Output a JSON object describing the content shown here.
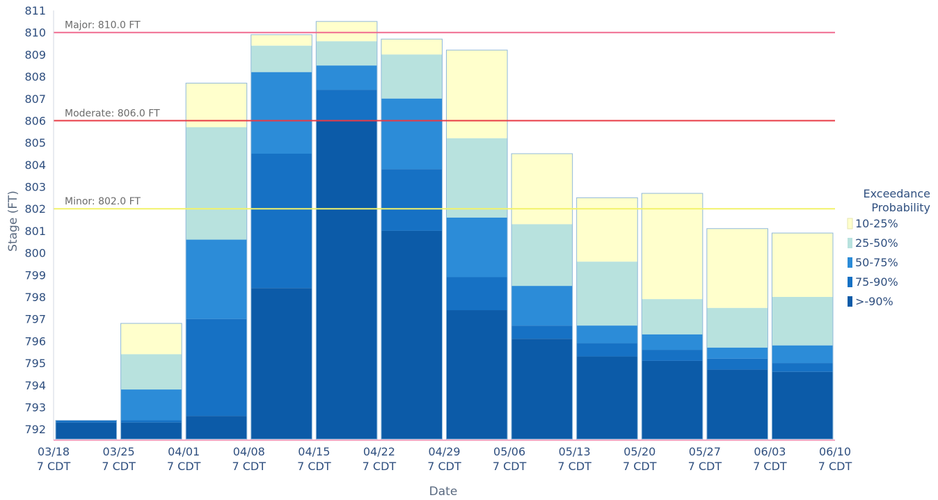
{
  "chart_data": {
    "type": "bar",
    "stacked": true,
    "xlabel": "Date",
    "ylabel": "Stage (FT)",
    "ylim": [
      791.5,
      811
    ],
    "yticks": [
      792,
      793,
      794,
      795,
      796,
      797,
      798,
      799,
      800,
      801,
      802,
      803,
      804,
      805,
      806,
      807,
      808,
      809,
      810,
      811
    ],
    "x_tick_labels": [
      {
        "date": "03/18",
        "time": "7 CDT"
      },
      {
        "date": "03/25",
        "time": "7 CDT"
      },
      {
        "date": "04/01",
        "time": "7 CDT"
      },
      {
        "date": "04/08",
        "time": "7 CDT"
      },
      {
        "date": "04/15",
        "time": "7 CDT"
      },
      {
        "date": "04/22",
        "time": "7 CDT"
      },
      {
        "date": "04/29",
        "time": "7 CDT"
      },
      {
        "date": "05/06",
        "time": "7 CDT"
      },
      {
        "date": "05/13",
        "time": "7 CDT"
      },
      {
        "date": "05/20",
        "time": "7 CDT"
      },
      {
        "date": "05/27",
        "time": "7 CDT"
      },
      {
        "date": "06/03",
        "time": "7 CDT"
      },
      {
        "date": "06/10",
        "time": "7 CDT"
      }
    ],
    "categories": [
      "03/18 - 03/25",
      "03/25 - 04/01",
      "04/01 - 04/08",
      "04/08 - 04/15",
      "04/15 - 04/22",
      "04/22 - 04/29",
      "04/29 - 05/06",
      "05/06 - 05/13",
      "05/13 - 05/20",
      "05/20 - 05/27",
      "05/27 - 06/03",
      "06/03 - 06/10"
    ],
    "levels": [
      {
        "probability": ">90%",
        "values": [
          792.3,
          792.3,
          792.6,
          798.4,
          806.0,
          801.0,
          797.4,
          796.1,
          795.3,
          795.1,
          794.7,
          794.6
        ]
      },
      {
        "probability": "75-90%",
        "values": [
          792.4,
          792.4,
          797.0,
          804.5,
          807.4,
          803.8,
          798.9,
          796.7,
          795.9,
          795.6,
          795.2,
          795.0
        ]
      },
      {
        "probability": "50-75%",
        "values": [
          792.4,
          793.8,
          800.6,
          808.2,
          808.5,
          807.0,
          801.6,
          798.5,
          796.7,
          796.3,
          795.7,
          795.8
        ]
      },
      {
        "probability": "25-50%",
        "values": [
          792.4,
          795.4,
          805.7,
          809.4,
          809.6,
          809.0,
          805.2,
          801.3,
          799.6,
          797.9,
          797.5,
          798.0
        ]
      },
      {
        "probability": "10-25%",
        "values": [
          792.4,
          796.8,
          807.7,
          809.9,
          810.5,
          809.7,
          809.2,
          804.5,
          802.5,
          802.7,
          801.1,
          800.9
        ]
      }
    ],
    "thresholds": [
      {
        "label": "Major: 810.0 FT",
        "value": 810.0,
        "color": "#f06b8f"
      },
      {
        "label": "Moderate: 806.0 FT",
        "value": 806.0,
        "color": "#e83a45"
      },
      {
        "label": "Minor: 802.0 FT",
        "value": 802.0,
        "color": "#f2f26a"
      }
    ],
    "legend": {
      "title_lines": [
        "Exceedance",
        "Probability"
      ],
      "placement": "right",
      "items": [
        {
          "label": "10-25%",
          "color": "#ffffcc"
        },
        {
          "label": "25-50%",
          "color": "#b8e2de"
        },
        {
          "label": "50-75%",
          "color": "#2c8cd8"
        },
        {
          "label": "75-90%",
          "color": "#1671c4"
        },
        {
          "label": ">-90%",
          "color": "#0c5ba8"
        }
      ]
    },
    "band_colors": [
      "#0c5ba8",
      "#1671c4",
      "#2c8cd8",
      "#b8e2de",
      "#ffffcc"
    ],
    "grid": false
  }
}
